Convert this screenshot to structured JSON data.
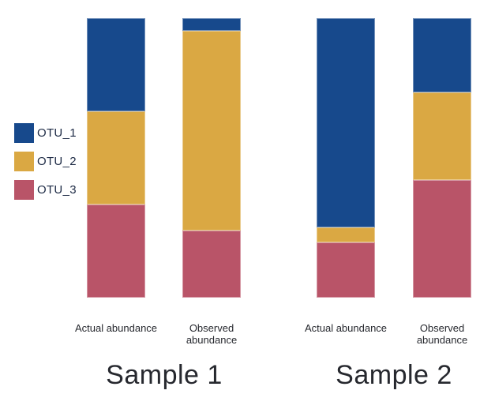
{
  "chart_data": {
    "type": "bar",
    "stacked": true,
    "orientation": "vertical",
    "unit": "percent",
    "ylim": [
      0,
      100
    ],
    "grid": false,
    "axes_shown": false,
    "legend_position": "left",
    "series": [
      {
        "name": "OTU_1",
        "color": "#17498C"
      },
      {
        "name": "OTU_2",
        "color": "#DAA843"
      },
      {
        "name": "OTU_3",
        "color": "#B95468"
      }
    ],
    "groups": [
      {
        "title": "Sample 1",
        "bars": [
          {
            "label": "Actual abundance",
            "values": {
              "OTU_1": 33.3,
              "OTU_2": 33.4,
              "OTU_3": 33.3
            }
          },
          {
            "label": "Observed abundance",
            "values": {
              "OTU_1": 4.5,
              "OTU_2": 71.5,
              "OTU_3": 24.0
            }
          }
        ]
      },
      {
        "title": "Sample 2",
        "bars": [
          {
            "label": "Actual abundance",
            "values": {
              "OTU_1": 74.9,
              "OTU_2": 5.4,
              "OTU_3": 19.7
            }
          },
          {
            "label": "Observed abundance",
            "values": {
              "OTU_1": 26.6,
              "OTU_2": 31.3,
              "OTU_3": 42.1
            }
          }
        ]
      }
    ]
  }
}
